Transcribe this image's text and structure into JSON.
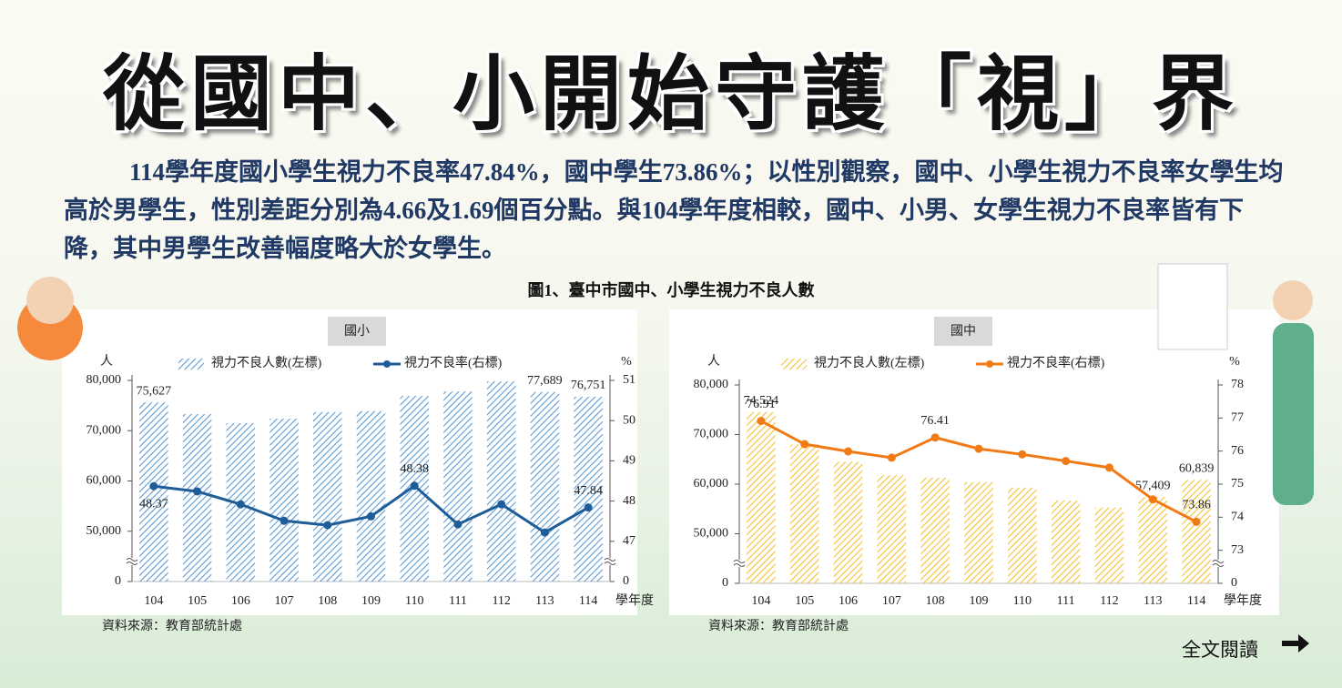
{
  "header": {
    "title": "從國中、小開始守護「視」界",
    "summary": "114學年度國小學生視力不良率47.84%，國中學生73.86%；以性別觀察，國中、小學生視力不良率女學生均高於男學生，性別差距分別為4.66及1.69個百分點。與104學年度相較，國中、小男、女學生視力不良率皆有下降，其中男學生改善幅度略大於女學生。",
    "figure_caption": "圖1、臺中市國中、小學生視力不良人數",
    "read_more": "全文閱讀"
  },
  "chart_data": [
    {
      "type": "bar",
      "title": "國小",
      "source": "資料來源：教育部統計處",
      "categories": [
        "104",
        "105",
        "106",
        "107",
        "108",
        "109",
        "110",
        "111",
        "112",
        "113",
        "114"
      ],
      "x_label": "學年度",
      "y_label": "人",
      "y2_label": "%",
      "series": [
        {
          "name": "視力不良人數(左標)",
          "color": "#5b9bd5",
          "values": [
            75627,
            73300,
            71500,
            72400,
            73700,
            73900,
            76900,
            77800,
            79800,
            77689,
            76751
          ],
          "value_labels": [
            "75,627",
            null,
            null,
            null,
            null,
            null,
            null,
            null,
            null,
            "77,689",
            "76,751"
          ]
        },
        {
          "name": "視力不良率(右標)",
          "color": "#1f5d99",
          "type": "line",
          "axis": "y2",
          "values": [
            48.37,
            48.24,
            47.92,
            47.51,
            47.4,
            47.62,
            48.38,
            47.42,
            47.92,
            47.22,
            47.84
          ],
          "value_labels": [
            "48.37",
            null,
            null,
            null,
            null,
            null,
            "48.38",
            null,
            null,
            null,
            "47.84"
          ]
        }
      ],
      "ylim": [
        40000,
        80000
      ],
      "yticks": [
        0,
        {
          "value": 50000,
          "label": "50,000"
        },
        {
          "value": 60000,
          "label": "60,000"
        },
        {
          "value": 70000,
          "label": "70,000"
        },
        {
          "value": 80000,
          "label": "80,000"
        }
      ],
      "y2lim": [
        46,
        51
      ],
      "y2ticks": [
        0,
        47,
        48,
        49,
        50,
        51
      ],
      "axis_break": true,
      "grid": false
    },
    {
      "type": "bar",
      "title": "國中",
      "source": "資料來源：教育部統計處",
      "categories": [
        "104",
        "105",
        "106",
        "107",
        "108",
        "109",
        "110",
        "111",
        "112",
        "113",
        "114"
      ],
      "x_label": "學年度",
      "y_label": "人",
      "y2_label": "%",
      "series": [
        {
          "name": "視力不良人數(左標)",
          "color": "#f2c12e",
          "values": [
            74524,
            68000,
            64500,
            61800,
            61300,
            60400,
            59300,
            56700,
            55300,
            57409,
            60839
          ],
          "value_labels": [
            "74,524",
            null,
            null,
            null,
            null,
            null,
            null,
            null,
            null,
            "57,409",
            "60,839"
          ]
        },
        {
          "name": "視力不良率(右標)",
          "color": "#f07b16",
          "type": "line",
          "axis": "y2",
          "values": [
            76.91,
            76.21,
            75.99,
            75.8,
            76.41,
            76.07,
            75.9,
            75.7,
            75.5,
            74.54,
            73.86
          ],
          "value_labels": [
            "76.91",
            null,
            null,
            null,
            "76.41",
            null,
            null,
            null,
            null,
            null,
            "73.86"
          ]
        }
      ],
      "ylim": [
        40000,
        80000
      ],
      "yticks": [
        0,
        {
          "value": 50000,
          "label": "50,000"
        },
        {
          "value": 60000,
          "label": "60,000"
        },
        {
          "value": 70000,
          "label": "70,000"
        },
        {
          "value": 80000,
          "label": "80,000"
        }
      ],
      "y2lim": [
        72,
        78
      ],
      "y2ticks": [
        0,
        73,
        74,
        75,
        76,
        77,
        78
      ],
      "axis_break": true,
      "grid": false
    }
  ]
}
